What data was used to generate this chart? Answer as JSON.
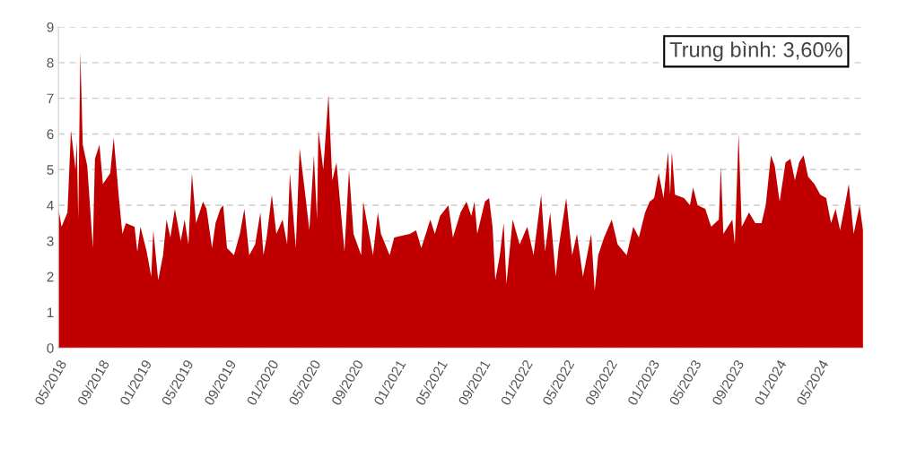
{
  "chart_data": {
    "type": "area",
    "annotations": [
      "Trung bình: 3,60%"
    ],
    "x": [
      "2018-05-01",
      "2018-05-10",
      "2018-05-27",
      "2018-06-06",
      "2018-06-19",
      "2018-06-23",
      "2018-06-27",
      "2018-07-03",
      "2018-07-10",
      "2018-07-23",
      "2018-08-08",
      "2018-08-14",
      "2018-08-27",
      "2018-09-06",
      "2018-09-27",
      "2018-10-07",
      "2018-10-23",
      "2018-11-01",
      "2018-11-11",
      "2018-12-06",
      "2018-12-14",
      "2018-12-23",
      "2019-01-10",
      "2019-01-23",
      "2019-01-29",
      "2019-02-12",
      "2019-02-26",
      "2019-03-08",
      "2019-03-19",
      "2019-04-01",
      "2019-04-18",
      "2019-04-29",
      "2019-05-10",
      "2019-05-20",
      "2019-06-01",
      "2019-06-21",
      "2019-07-01",
      "2019-07-17",
      "2019-07-27",
      "2019-08-10",
      "2019-08-18",
      "2019-08-29",
      "2019-09-18",
      "2019-10-05",
      "2019-10-18",
      "2019-11-01",
      "2019-11-18",
      "2019-12-03",
      "2019-12-12",
      "2019-12-21",
      "2020-01-05",
      "2020-01-18",
      "2020-02-05",
      "2020-02-18",
      "2020-02-26",
      "2020-03-14",
      "2020-03-25",
      "2020-04-09",
      "2020-04-22",
      "2020-05-05",
      "2020-05-14",
      "2020-05-18",
      "2020-06-01",
      "2020-06-16",
      "2020-06-27",
      "2020-07-09",
      "2020-08-01",
      "2020-08-14",
      "2020-08-27",
      "2020-09-18",
      "2020-09-24",
      "2020-10-22",
      "2020-11-05",
      "2020-11-14",
      "2020-12-09",
      "2020-12-22",
      "2021-02-05",
      "2021-02-23",
      "2021-03-10",
      "2021-04-05",
      "2021-04-18",
      "2021-05-03",
      "2021-05-27",
      "2021-06-09",
      "2021-07-01",
      "2021-07-18",
      "2021-08-01",
      "2021-08-10",
      "2021-08-18",
      "2021-09-09",
      "2021-09-21",
      "2021-10-01",
      "2021-10-09",
      "2021-10-22",
      "2021-11-02",
      "2021-11-10",
      "2021-11-28",
      "2021-12-18",
      "2022-01-09",
      "2022-01-27",
      "2022-02-18",
      "2022-03-01",
      "2022-03-16",
      "2022-04-01",
      "2022-04-09",
      "2022-05-01",
      "2022-05-18",
      "2022-06-01",
      "2022-06-18",
      "2022-07-12",
      "2022-07-22",
      "2022-08-01",
      "2022-08-18",
      "2022-09-09",
      "2022-09-26",
      "2022-10-22",
      "2022-11-10",
      "2022-11-26",
      "2022-12-14",
      "2022-12-27",
      "2023-01-09",
      "2023-01-22",
      "2023-02-05",
      "2023-02-18",
      "2023-02-24",
      "2023-03-01",
      "2023-03-10",
      "2023-04-05",
      "2023-04-22",
      "2023-05-01",
      "2023-05-14",
      "2023-06-05",
      "2023-06-22",
      "2023-07-14",
      "2023-07-20",
      "2023-07-27",
      "2023-08-22",
      "2023-08-29",
      "2023-09-09",
      "2023-09-18",
      "2023-10-09",
      "2023-10-27",
      "2023-11-14",
      "2023-11-26",
      "2023-12-11",
      "2023-12-22",
      "2024-01-05",
      "2024-01-22",
      "2024-02-05",
      "2024-02-18",
      "2024-03-01",
      "2024-03-14",
      "2024-03-27",
      "2024-04-14",
      "2024-05-01",
      "2024-05-18",
      "2024-06-01",
      "2024-06-14",
      "2024-06-27",
      "2024-07-09",
      "2024-07-22",
      "2024-08-05",
      "2024-08-22",
      "2024-09-01"
    ],
    "series": [
      {
        "color": "#c00000",
        "values": [
          3.9,
          3.4,
          3.8,
          6.1,
          5.0,
          5.8,
          3.6,
          8.3,
          5.7,
          5.1,
          2.8,
          5.3,
          5.7,
          4.6,
          4.9,
          5.9,
          4.1,
          3.2,
          3.5,
          3.4,
          2.7,
          3.4,
          2.7,
          2.0,
          3.3,
          1.9,
          2.6,
          3.6,
          3.1,
          3.9,
          3.0,
          3.6,
          2.9,
          4.9,
          3.5,
          4.1,
          3.9,
          2.8,
          3.5,
          3.9,
          4.0,
          2.8,
          2.6,
          3.2,
          3.9,
          2.6,
          2.9,
          3.8,
          2.6,
          3.1,
          4.3,
          3.2,
          3.6,
          2.9,
          4.9,
          2.8,
          5.6,
          4.4,
          3.3,
          5.4,
          3.6,
          6.1,
          5.0,
          7.1,
          4.7,
          5.2,
          2.7,
          5.0,
          3.2,
          2.6,
          4.1,
          2.6,
          3.8,
          3.2,
          2.6,
          3.1,
          3.2,
          3.3,
          2.8,
          3.6,
          3.2,
          3.7,
          4.0,
          3.1,
          3.8,
          4.1,
          3.7,
          4.1,
          3.2,
          4.1,
          4.2,
          3.4,
          1.9,
          2.6,
          3.5,
          1.8,
          3.6,
          2.9,
          3.4,
          2.6,
          4.3,
          2.7,
          3.8,
          2.0,
          2.8,
          4.2,
          2.6,
          3.2,
          2.0,
          3.2,
          1.6,
          2.6,
          3.1,
          3.6,
          2.9,
          2.6,
          3.4,
          3.1,
          3.8,
          4.1,
          4.2,
          4.9,
          4.2,
          5.5,
          4.3,
          5.5,
          4.3,
          4.2,
          4.0,
          4.5,
          4.0,
          3.9,
          3.4,
          3.6,
          5.1,
          3.2,
          3.6,
          2.9,
          6.0,
          3.4,
          3.8,
          3.5,
          3.5,
          4.0,
          5.4,
          5.1,
          4.1,
          5.2,
          5.3,
          4.7,
          5.2,
          5.4,
          4.8,
          4.6,
          4.3,
          4.2,
          3.5,
          3.9,
          3.3,
          3.9,
          4.6,
          3.2,
          4.0,
          3.3
        ]
      }
    ],
    "xlim": [
      "2018-05-01",
      "2024-09-01"
    ],
    "xticks": [
      {
        "value": "2018-05",
        "label": "05/2018"
      },
      {
        "value": "2018-09",
        "label": "09/2018"
      },
      {
        "value": "2019-01",
        "label": "01/2019"
      },
      {
        "value": "2019-05",
        "label": "05/2019"
      },
      {
        "value": "2019-09",
        "label": "09/2019"
      },
      {
        "value": "2020-01",
        "label": "01/2020"
      },
      {
        "value": "2020-05",
        "label": "05/2020"
      },
      {
        "value": "2020-09",
        "label": "09/2020"
      },
      {
        "value": "2021-01",
        "label": "01/2021"
      },
      {
        "value": "2021-05",
        "label": "05/2021"
      },
      {
        "value": "2021-09",
        "label": "09/2021"
      },
      {
        "value": "2022-01",
        "label": "01/2022"
      },
      {
        "value": "2022-05",
        "label": "05/2022"
      },
      {
        "value": "2022-09",
        "label": "09/2022"
      },
      {
        "value": "2023-01",
        "label": "01/2023"
      },
      {
        "value": "2023-05",
        "label": "05/2023"
      },
      {
        "value": "2023-09",
        "label": "09/2023"
      },
      {
        "value": "2024-01",
        "label": "01/2024"
      },
      {
        "value": "2024-05",
        "label": "05/2024"
      }
    ],
    "ylim": [
      0,
      9
    ],
    "yticks": [
      0,
      1,
      2,
      3,
      4,
      5,
      6,
      7,
      8,
      9
    ],
    "grid": "y",
    "legend": false
  }
}
